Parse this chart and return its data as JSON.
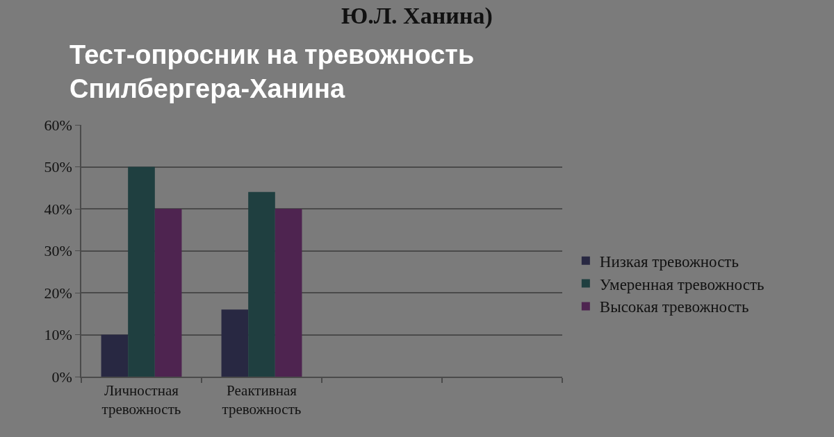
{
  "chart_data": {
    "type": "bar",
    "title": "Тест-опросник на тревожность\nСпилбергера-Ханина",
    "annotations": [
      "Ю.Л. Ханина)"
    ],
    "categories": [
      "Личностная тревожность",
      "Реактивная тревожность",
      null,
      null
    ],
    "series": [
      {
        "name": "Низкая тревожность",
        "color": "#282842",
        "values": [
          10,
          16,
          null,
          null
        ]
      },
      {
        "name": "Умеренная тревожность",
        "color": "#1f3f40",
        "values": [
          50,
          44,
          null,
          null
        ]
      },
      {
        "name": "Высокая тревожность",
        "color": "#4e2450",
        "values": [
          40,
          40,
          null,
          null
        ]
      }
    ],
    "ylim": [
      0,
      60
    ],
    "yticks": [
      {
        "value": 0,
        "label": "0%"
      },
      {
        "value": 10,
        "label": "10%"
      },
      {
        "value": 20,
        "label": "20%"
      },
      {
        "value": 30,
        "label": "30%"
      },
      {
        "value": 40,
        "label": "40%"
      },
      {
        "value": 50,
        "label": "50%"
      },
      {
        "value": 60,
        "label": "60%"
      }
    ],
    "grid": "y",
    "legend": "right"
  }
}
